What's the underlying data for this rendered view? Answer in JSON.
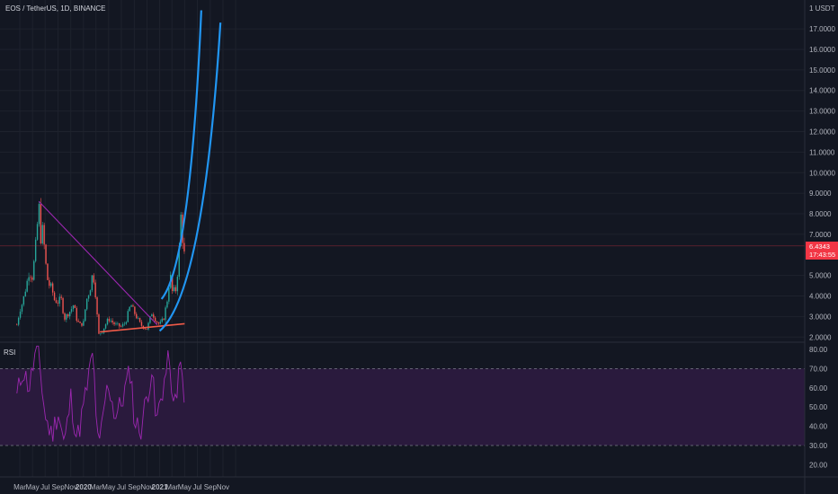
{
  "header": {
    "symbol_title": "EOS / TetherUS, 1D, BINANCE"
  },
  "price_axis": {
    "currency_label": "1 USDT",
    "ticks": [
      "17.0000",
      "16.0000",
      "15.0000",
      "14.0000",
      "13.0000",
      "12.0000",
      "11.0000",
      "10.0000",
      "9.0000",
      "8.0000",
      "7.0000",
      "5.0000",
      "4.0000",
      "3.0000",
      "2.0000"
    ],
    "tick_values": [
      17,
      16,
      15,
      14,
      13,
      12,
      11,
      10,
      9,
      8,
      7,
      5,
      4,
      3,
      2
    ],
    "current_price": "6.4343",
    "countdown": "17:43:55",
    "current_value": 6.4343,
    "price_tag_color": "#f23645"
  },
  "rsi": {
    "label": "RSI",
    "ticks": [
      "80.00",
      "70.00",
      "60.00",
      "50.00",
      "40.00",
      "30.00",
      "20.00"
    ],
    "tick_values": [
      80,
      70,
      60,
      50,
      40,
      30,
      20
    ],
    "upper_band": 70,
    "lower_band": 30,
    "line_color": "#9c27b0",
    "band_fill_color": "#2a1a3d"
  },
  "time_axis": {
    "labels": [
      "Mar",
      "May",
      "Jul",
      "Sep",
      "Nov",
      "2020",
      "Mar",
      "May",
      "Jul",
      "Sep",
      "Nov",
      "2021",
      "Mar",
      "May",
      "Jul",
      "Sep",
      "Nov"
    ]
  },
  "chart_data": {
    "type": "candlestick",
    "colors": {
      "up": "#26a69a",
      "down": "#ef5350",
      "downtrend": "#9c27b0",
      "support": "#f05a48",
      "channel": "#2196f3"
    },
    "price_series": [
      [
        "2019-02-15",
        2.6
      ],
      [
        "2019-03-01",
        3.3
      ],
      [
        "2019-03-15",
        3.7
      ],
      [
        "2019-04-01",
        4.5
      ],
      [
        "2019-04-15",
        5.2
      ],
      [
        "2019-05-01",
        4.9
      ],
      [
        "2019-05-15",
        6.3
      ],
      [
        "2019-06-01",
        8.4
      ],
      [
        "2019-06-10",
        6.8
      ],
      [
        "2019-06-20",
        7.3
      ],
      [
        "2019-07-01",
        5.8
      ],
      [
        "2019-07-15",
        4.6
      ],
      [
        "2019-08-01",
        4.4
      ],
      [
        "2019-08-15",
        3.8
      ],
      [
        "2019-09-01",
        3.7
      ],
      [
        "2019-09-15",
        3.9
      ],
      [
        "2019-10-01",
        2.9
      ],
      [
        "2019-10-15",
        3.1
      ],
      [
        "2019-11-01",
        3.3
      ],
      [
        "2019-11-15",
        3.6
      ],
      [
        "2019-12-01",
        2.8
      ],
      [
        "2019-12-15",
        2.6
      ],
      [
        "2020-01-01",
        2.7
      ],
      [
        "2020-01-15",
        3.8
      ],
      [
        "2020-02-01",
        4.3
      ],
      [
        "2020-02-15",
        5.2
      ],
      [
        "2020-03-01",
        3.9
      ],
      [
        "2020-03-13",
        2.1
      ],
      [
        "2020-04-01",
        2.3
      ],
      [
        "2020-04-15",
        2.6
      ],
      [
        "2020-05-01",
        2.9
      ],
      [
        "2020-06-01",
        2.6
      ],
      [
        "2020-07-01",
        2.5
      ],
      [
        "2020-07-20",
        2.7
      ],
      [
        "2020-08-15",
        3.6
      ],
      [
        "2020-09-01",
        3.2
      ],
      [
        "2020-10-01",
        2.6
      ],
      [
        "2020-11-01",
        2.4
      ],
      [
        "2020-11-25",
        3.2
      ],
      [
        "2020-12-15",
        2.8
      ],
      [
        "2021-01-01",
        2.6
      ],
      [
        "2021-01-20",
        2.9
      ],
      [
        "2021-02-10",
        4.0
      ],
      [
        "2021-02-20",
        5.2
      ],
      [
        "2021-03-01",
        4.2
      ],
      [
        "2021-03-20",
        4.3
      ],
      [
        "2021-04-01",
        5.6
      ],
      [
        "2021-04-10",
        7.3
      ],
      [
        "2021-04-17",
        8.7
      ],
      [
        "2021-04-25",
        5.0
      ],
      [
        "2021-05-01",
        6.4343
      ]
    ],
    "rsi_series": [
      [
        "2019-02-15",
        55
      ],
      [
        "2019-03-15",
        70
      ],
      [
        "2019-04-15",
        60
      ],
      [
        "2019-05-15",
        78
      ],
      [
        "2019-06-01",
        75
      ],
      [
        "2019-07-01",
        45
      ],
      [
        "2019-08-01",
        35
      ],
      [
        "2019-09-01",
        48
      ],
      [
        "2019-10-01",
        30
      ],
      [
        "2019-11-01",
        55
      ],
      [
        "2019-12-01",
        33
      ],
      [
        "2020-01-01",
        50
      ],
      [
        "2020-02-15",
        78
      ],
      [
        "2020-03-13",
        25
      ],
      [
        "2020-04-15",
        55
      ],
      [
        "2020-05-01",
        62
      ],
      [
        "2020-06-01",
        45
      ],
      [
        "2020-07-01",
        52
      ],
      [
        "2020-08-15",
        70
      ],
      [
        "2020-09-01",
        42
      ],
      [
        "2020-10-01",
        38
      ],
      [
        "2020-11-01",
        56
      ],
      [
        "2020-11-25",
        70
      ],
      [
        "2020-12-15",
        40
      ],
      [
        "2021-01-01",
        52
      ],
      [
        "2021-02-20",
        78
      ],
      [
        "2021-03-01",
        45
      ],
      [
        "2021-04-01",
        65
      ],
      [
        "2021-04-17",
        76
      ],
      [
        "2021-04-25",
        45
      ],
      [
        "2021-05-01",
        54
      ]
    ],
    "drawings": {
      "downtrend_line": [
        [
          "2019-06-01",
          8.6
        ],
        [
          "2020-12-20",
          2.6
        ]
      ],
      "support_line": [
        [
          "2020-03-20",
          2.25
        ],
        [
          "2021-05-01",
          2.65
        ]
      ],
      "channel_upper_start": [
        "2021-01-10",
        3.85
      ],
      "channel_lower_start": [
        "2021-01-01",
        2.3
      ],
      "channel_upper_end": [
        "2021-07-20",
        17.9
      ],
      "channel_lower_end": [
        "2021-10-20",
        17.3
      ]
    }
  }
}
